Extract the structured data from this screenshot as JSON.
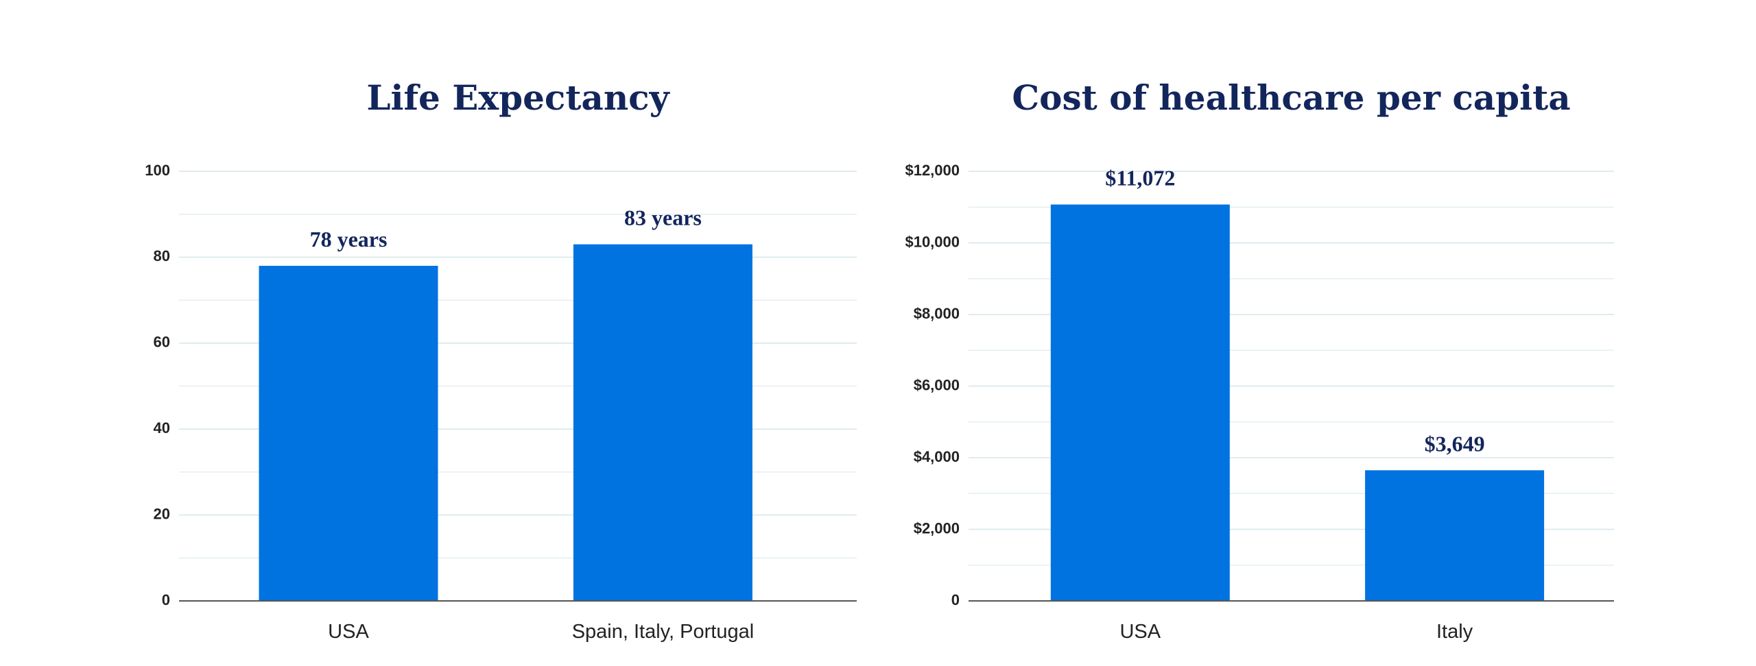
{
  "chart_data": [
    {
      "type": "bar",
      "title": "Life Expectancy",
      "categories": [
        "USA",
        "Spain, Italy, Portugal"
      ],
      "values": [
        78,
        83
      ],
      "value_labels": [
        "78 years",
        "83 years"
      ],
      "color": "#0073e0",
      "ylim": [
        0,
        100
      ],
      "yticks": [
        0,
        20,
        40,
        60,
        80,
        100
      ],
      "minor_yticks": [
        10,
        30,
        50,
        70,
        90
      ],
      "grid": true
    },
    {
      "type": "bar",
      "title": "Cost of healthcare per capita",
      "categories": [
        "USA",
        "Italy"
      ],
      "values": [
        11072,
        3649
      ],
      "value_labels": [
        "$11,072",
        "$3,649"
      ],
      "color": "#0073e0",
      "ylim": [
        0,
        12000
      ],
      "yticks": [
        0,
        {
          "value": 2000,
          "label": "$2,000"
        },
        {
          "value": 4000,
          "label": "$4,000"
        },
        {
          "value": 6000,
          "label": "$6,000"
        },
        {
          "value": 8000,
          "label": "$8,000"
        },
        {
          "value": 10000,
          "label": "$10,000"
        },
        {
          "value": 12000,
          "label": "$12,000"
        }
      ],
      "minor_yticks": [
        1000,
        3000,
        5000,
        7000,
        9000,
        11000
      ],
      "grid": true
    }
  ]
}
